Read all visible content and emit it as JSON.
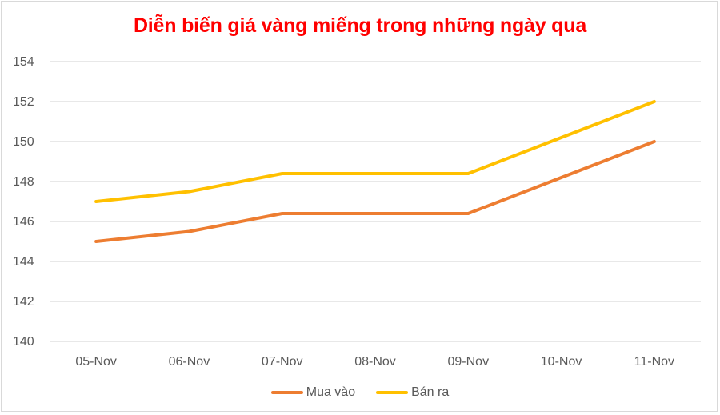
{
  "chart_data": {
    "type": "line",
    "title": "Diễn biến giá vàng miếng trong những ngày qua",
    "xlabel": "",
    "ylabel": "",
    "categories": [
      "05-Nov",
      "06-Nov",
      "07-Nov",
      "08-Nov",
      "09-Nov",
      "10-Nov",
      "11-Nov"
    ],
    "ylim": [
      140,
      154
    ],
    "yticks": [
      140,
      142,
      144,
      146,
      148,
      150,
      152,
      154
    ],
    "grid": true,
    "legend_position": "bottom",
    "series": [
      {
        "name": "Mua vào",
        "color": "#ed7d31",
        "values": [
          145,
          145.5,
          146.4,
          146.4,
          146.4,
          148.2,
          150
        ]
      },
      {
        "name": "Bán ra",
        "color": "#ffc000",
        "values": [
          147,
          147.5,
          148.4,
          148.4,
          148.4,
          150.2,
          152
        ]
      }
    ]
  },
  "colors": {
    "title": "#ff0000",
    "grid": "#d9d9d9",
    "axis_text": "#595959",
    "border": "#d9d9d9"
  }
}
